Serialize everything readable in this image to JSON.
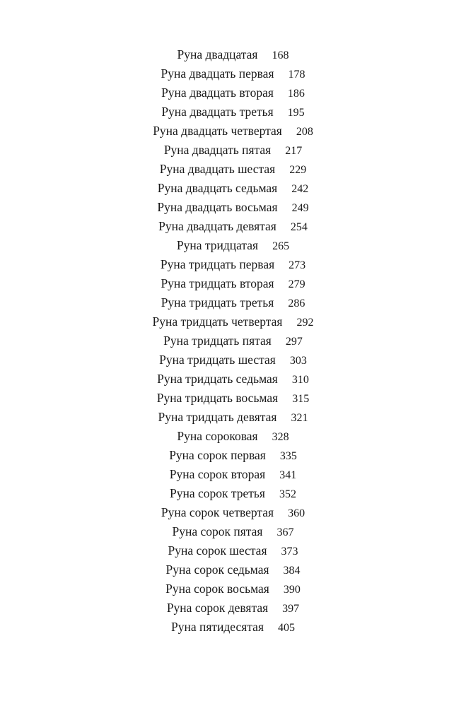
{
  "toc": {
    "entries": [
      {
        "title": "Руна двадцатая",
        "page": "168"
      },
      {
        "title": "Руна двадцать первая",
        "page": "178"
      },
      {
        "title": "Руна двадцать вторая",
        "page": "186"
      },
      {
        "title": "Руна двадцать третья",
        "page": "195"
      },
      {
        "title": "Руна двадцать четвертая",
        "page": "208"
      },
      {
        "title": "Руна двадцать пятая",
        "page": "217"
      },
      {
        "title": "Руна двадцать шестая",
        "page": "229"
      },
      {
        "title": "Руна двадцать седьмая",
        "page": "242"
      },
      {
        "title": "Руна двадцать восьмая",
        "page": "249"
      },
      {
        "title": "Руна двадцать девятая",
        "page": "254"
      },
      {
        "title": "Руна тридцатая",
        "page": "265"
      },
      {
        "title": "Руна тридцать первая",
        "page": "273"
      },
      {
        "title": "Руна тридцать вторая",
        "page": "279"
      },
      {
        "title": "Руна тридцать третья",
        "page": "286"
      },
      {
        "title": "Руна тридцать четвертая",
        "page": "292"
      },
      {
        "title": "Руна тридцать пятая",
        "page": "297"
      },
      {
        "title": "Руна тридцать шестая",
        "page": "303"
      },
      {
        "title": "Руна тридцать седьмая",
        "page": "310"
      },
      {
        "title": "Руна тридцать восьмая",
        "page": "315"
      },
      {
        "title": "Руна тридцать девятая",
        "page": "321"
      },
      {
        "title": "Руна сороковая",
        "page": "328"
      },
      {
        "title": "Руна сорок первая",
        "page": "335"
      },
      {
        "title": "Руна сорок вторая",
        "page": "341"
      },
      {
        "title": "Руна сорок третья",
        "page": "352"
      },
      {
        "title": "Руна сорок четвертая",
        "page": "360"
      },
      {
        "title": "Руна сорок пятая",
        "page": "367"
      },
      {
        "title": "Руна сорок шестая",
        "page": "373"
      },
      {
        "title": "Руна сорок седьмая",
        "page": "384"
      },
      {
        "title": "Руна сорок восьмая",
        "page": "390"
      },
      {
        "title": "Руна сорок девятая",
        "page": "397"
      },
      {
        "title": "Руна пятидесятая",
        "page": "405"
      }
    ]
  }
}
